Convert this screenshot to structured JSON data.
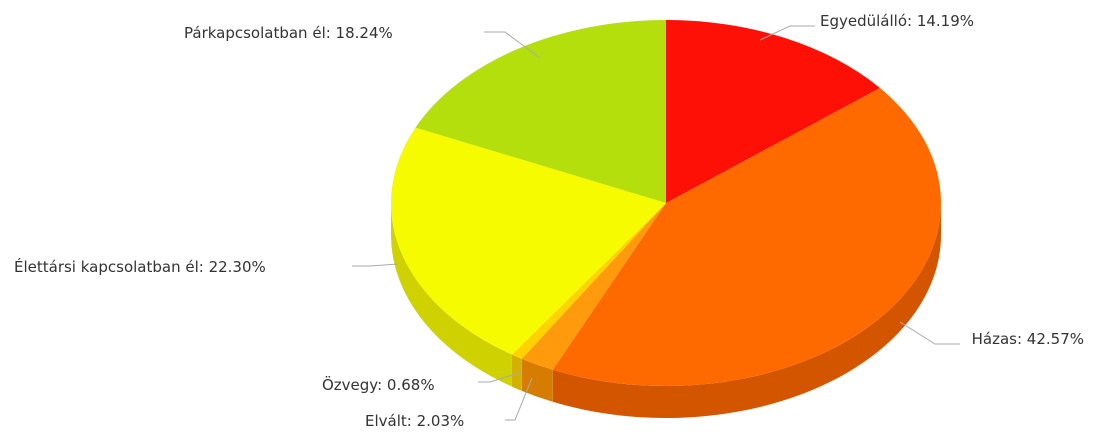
{
  "chart_data": {
    "type": "pie",
    "style": "3d",
    "slices": [
      {
        "label": "Egyedülálló",
        "value": 14.19,
        "display": "Egyedülálló: 14.19%",
        "color": "#fe1007",
        "side": "#c80b05"
      },
      {
        "label": "Házas",
        "value": 42.57,
        "display": "Házas: 42.57%",
        "color": "#fe6a00",
        "side": "#d45500"
      },
      {
        "label": "Elvált",
        "value": 2.03,
        "display": "Elvált: 2.03%",
        "color": "#ff9a0d",
        "side": "#d67c00"
      },
      {
        "label": "Özvegy",
        "value": 0.68,
        "display": "Özvegy: 0.68%",
        "color": "#ffd200",
        "side": "#d4b000"
      },
      {
        "label": "Élettársi kapcsolatban él",
        "value": 22.3,
        "display": "Élettársi kapcsolatban él: 22.30%",
        "color": "#f7fb00",
        "side": "#cfd200"
      },
      {
        "label": "Párkapcsolatban él",
        "value": 18.24,
        "display": "Párkapcsolatban él: 18.24%",
        "color": "#b5df0c",
        "side": "#92b609"
      }
    ]
  }
}
